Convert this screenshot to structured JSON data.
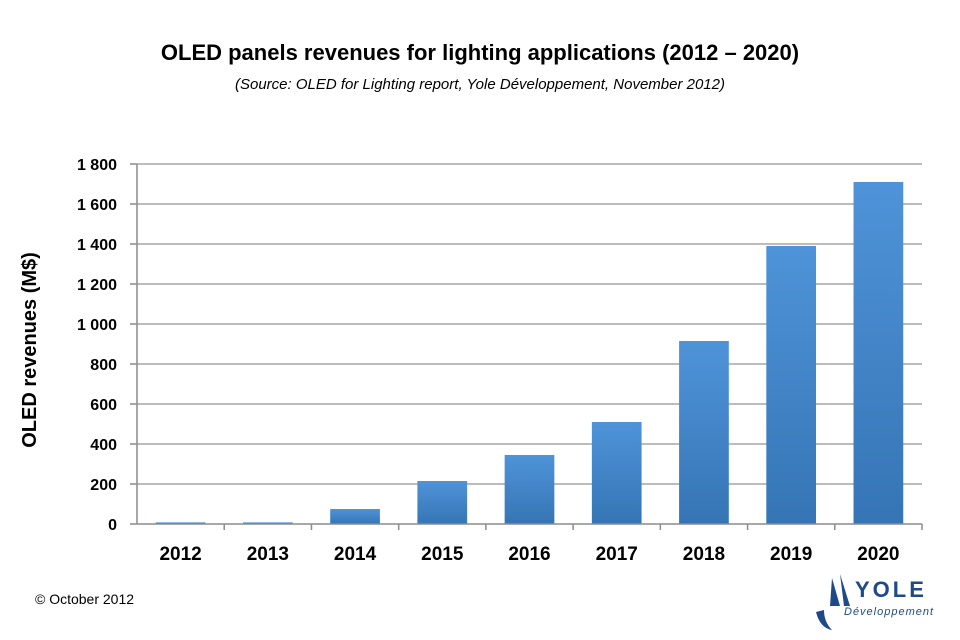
{
  "chart_data": {
    "type": "bar",
    "title": "OLED panels revenues for lighting applications (2012 – 2020)",
    "subtitle": "(Source: OLED for Lighting report, Yole Développement, November 2012)",
    "ylabel": "OLED revenues (M$)",
    "xlabel": "",
    "categories": [
      "2012",
      "2013",
      "2014",
      "2015",
      "2016",
      "2017",
      "2018",
      "2019",
      "2020"
    ],
    "values": [
      8,
      8,
      75,
      215,
      345,
      510,
      915,
      1390,
      1710
    ],
    "ylim": [
      0,
      1800
    ],
    "yticks": [
      0,
      200,
      400,
      600,
      800,
      1000,
      1200,
      1400,
      1600,
      1800
    ],
    "ytick_labels": [
      "0",
      "200",
      "400",
      "600",
      "800",
      "1 000",
      "1 200",
      "1 400",
      "1 600",
      "1 800"
    ],
    "grid": true,
    "legend": "none",
    "bar_color": "#3d82c8"
  },
  "footer": {
    "copyright": "© October 2012"
  },
  "logo": {
    "brand": "YOLE",
    "tagline": "Développement",
    "color": "#1f4a8a"
  }
}
